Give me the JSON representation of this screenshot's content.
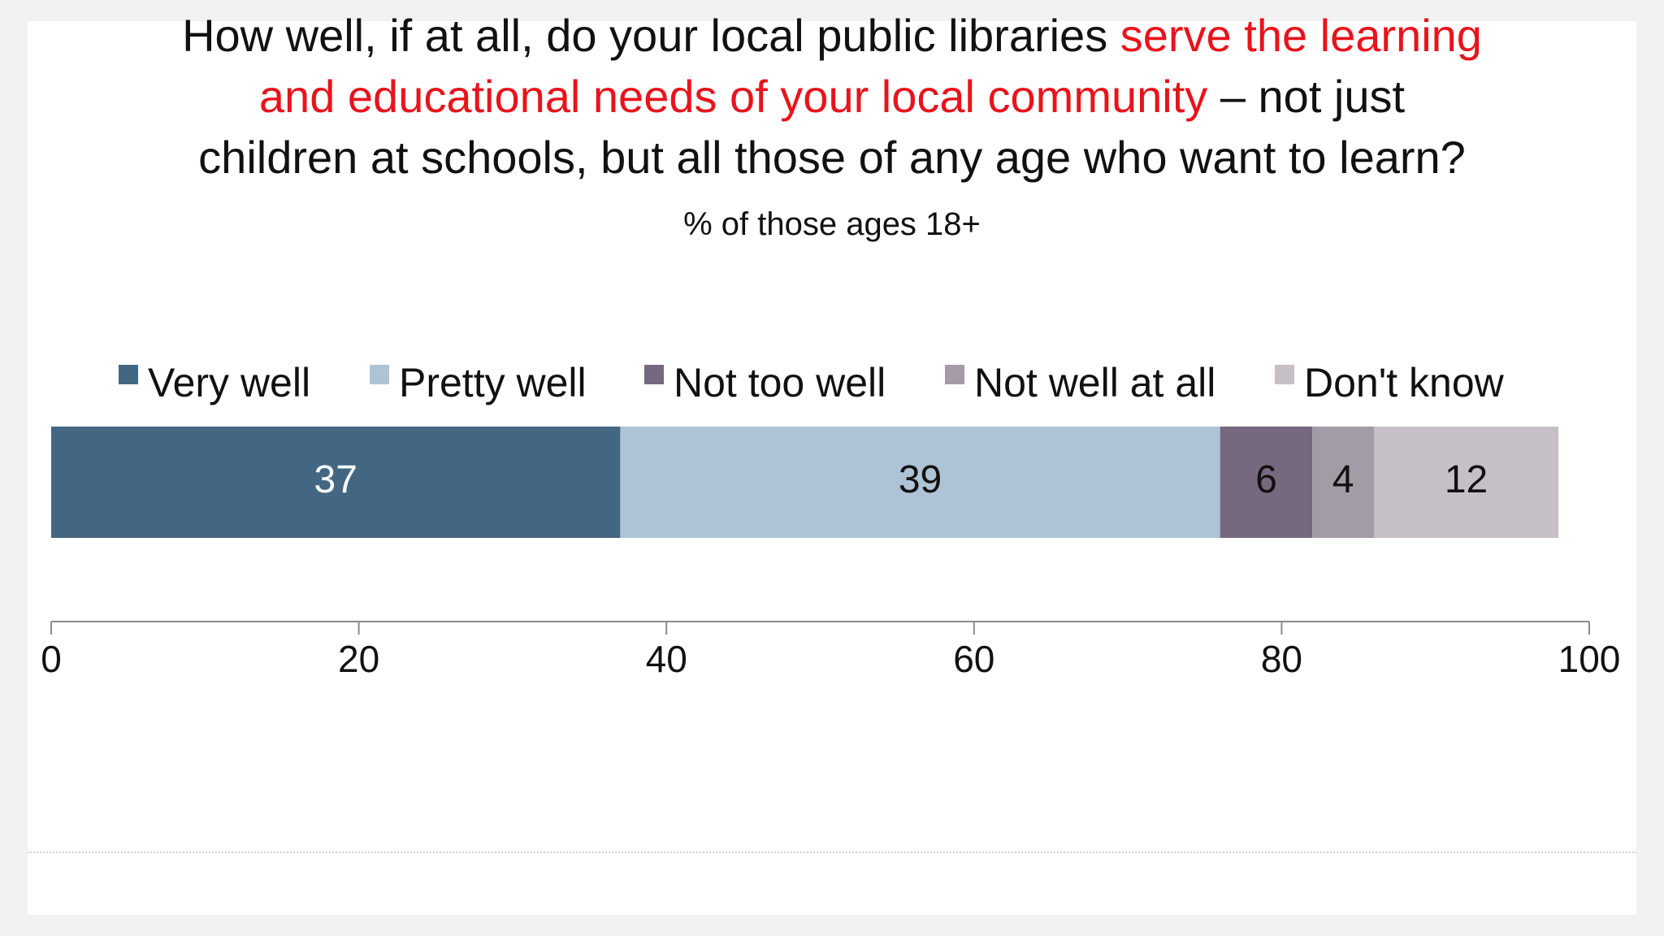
{
  "title": {
    "part1": "How well, if at all, do your local public libraries ",
    "highlight1": "serve the learning",
    "highlight2": "and educational needs of your local community",
    "part2": " – not just",
    "line3": "children at schools, but all those of any age who want to learn?"
  },
  "subtitle": "% of those ages 18+",
  "colors": {
    "highlight": "#e8141c",
    "very_well": "#436783",
    "pretty_well": "#aec3d5",
    "not_too_well": "#76687e",
    "not_well_at_all": "#a39ba5",
    "dont_know": "#c6c0c6"
  },
  "chart_data": {
    "type": "bar",
    "orientation": "horizontal",
    "stacked": true,
    "categories": [
      ""
    ],
    "series": [
      {
        "name": "Very well",
        "values": [
          37
        ],
        "color": "#436783",
        "label_color": "#ffffff"
      },
      {
        "name": "Pretty well",
        "values": [
          39
        ],
        "color": "#aec3d5",
        "label_color": "#111111"
      },
      {
        "name": "Not too well",
        "values": [
          6
        ],
        "color": "#76687e",
        "label_color": "#111111"
      },
      {
        "name": "Not well at all",
        "values": [
          4
        ],
        "color": "#a39ba5",
        "label_color": "#111111"
      },
      {
        "name": "Don't know",
        "values": [
          12
        ],
        "color": "#c6c0c6",
        "label_color": "#111111"
      }
    ],
    "xlim": [
      0,
      100
    ],
    "xticks": [
      0,
      20,
      40,
      60,
      80,
      100
    ],
    "grid": false,
    "legend": "top"
  }
}
